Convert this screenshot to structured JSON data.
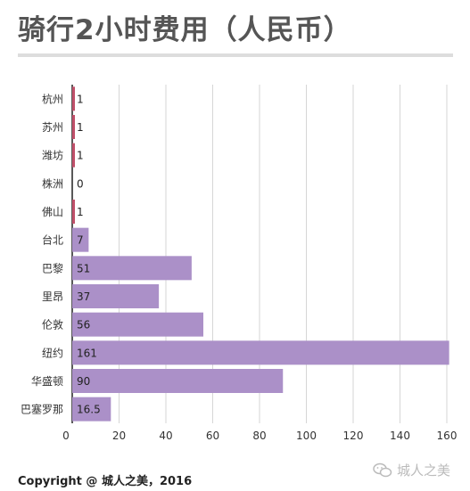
{
  "title": "骑行2小时费用（人民币）",
  "footer": "Copyright @ 城人之美，2016",
  "watermark": "城人之美",
  "icons": {
    "watermark": "wechat-icon"
  },
  "colors": {
    "bar": "#ab90c8",
    "bar_small": "#c0506a",
    "grid": "#d6d6d6"
  },
  "chart_data": {
    "type": "bar",
    "orientation": "horizontal",
    "categories": [
      "杭州",
      "苏州",
      "潍坊",
      "株洲",
      "佛山",
      "台北",
      "巴黎",
      "里昂",
      "伦敦",
      "纽约",
      "华盛顿",
      "巴塞罗那"
    ],
    "values": [
      1,
      1,
      1,
      0,
      1,
      7,
      51,
      37,
      56,
      161,
      90,
      16.5
    ],
    "value_labels": [
      "1",
      "1",
      "1",
      "0",
      "1",
      "7",
      "51",
      "37",
      "56",
      "161",
      "90",
      "16.5"
    ],
    "xlim": [
      0,
      160
    ],
    "xticks": [
      0,
      20,
      40,
      60,
      80,
      100,
      120,
      140,
      160
    ],
    "grid": true,
    "title": "骑行2小时费用（人民币）",
    "xlabel": "",
    "ylabel": ""
  }
}
